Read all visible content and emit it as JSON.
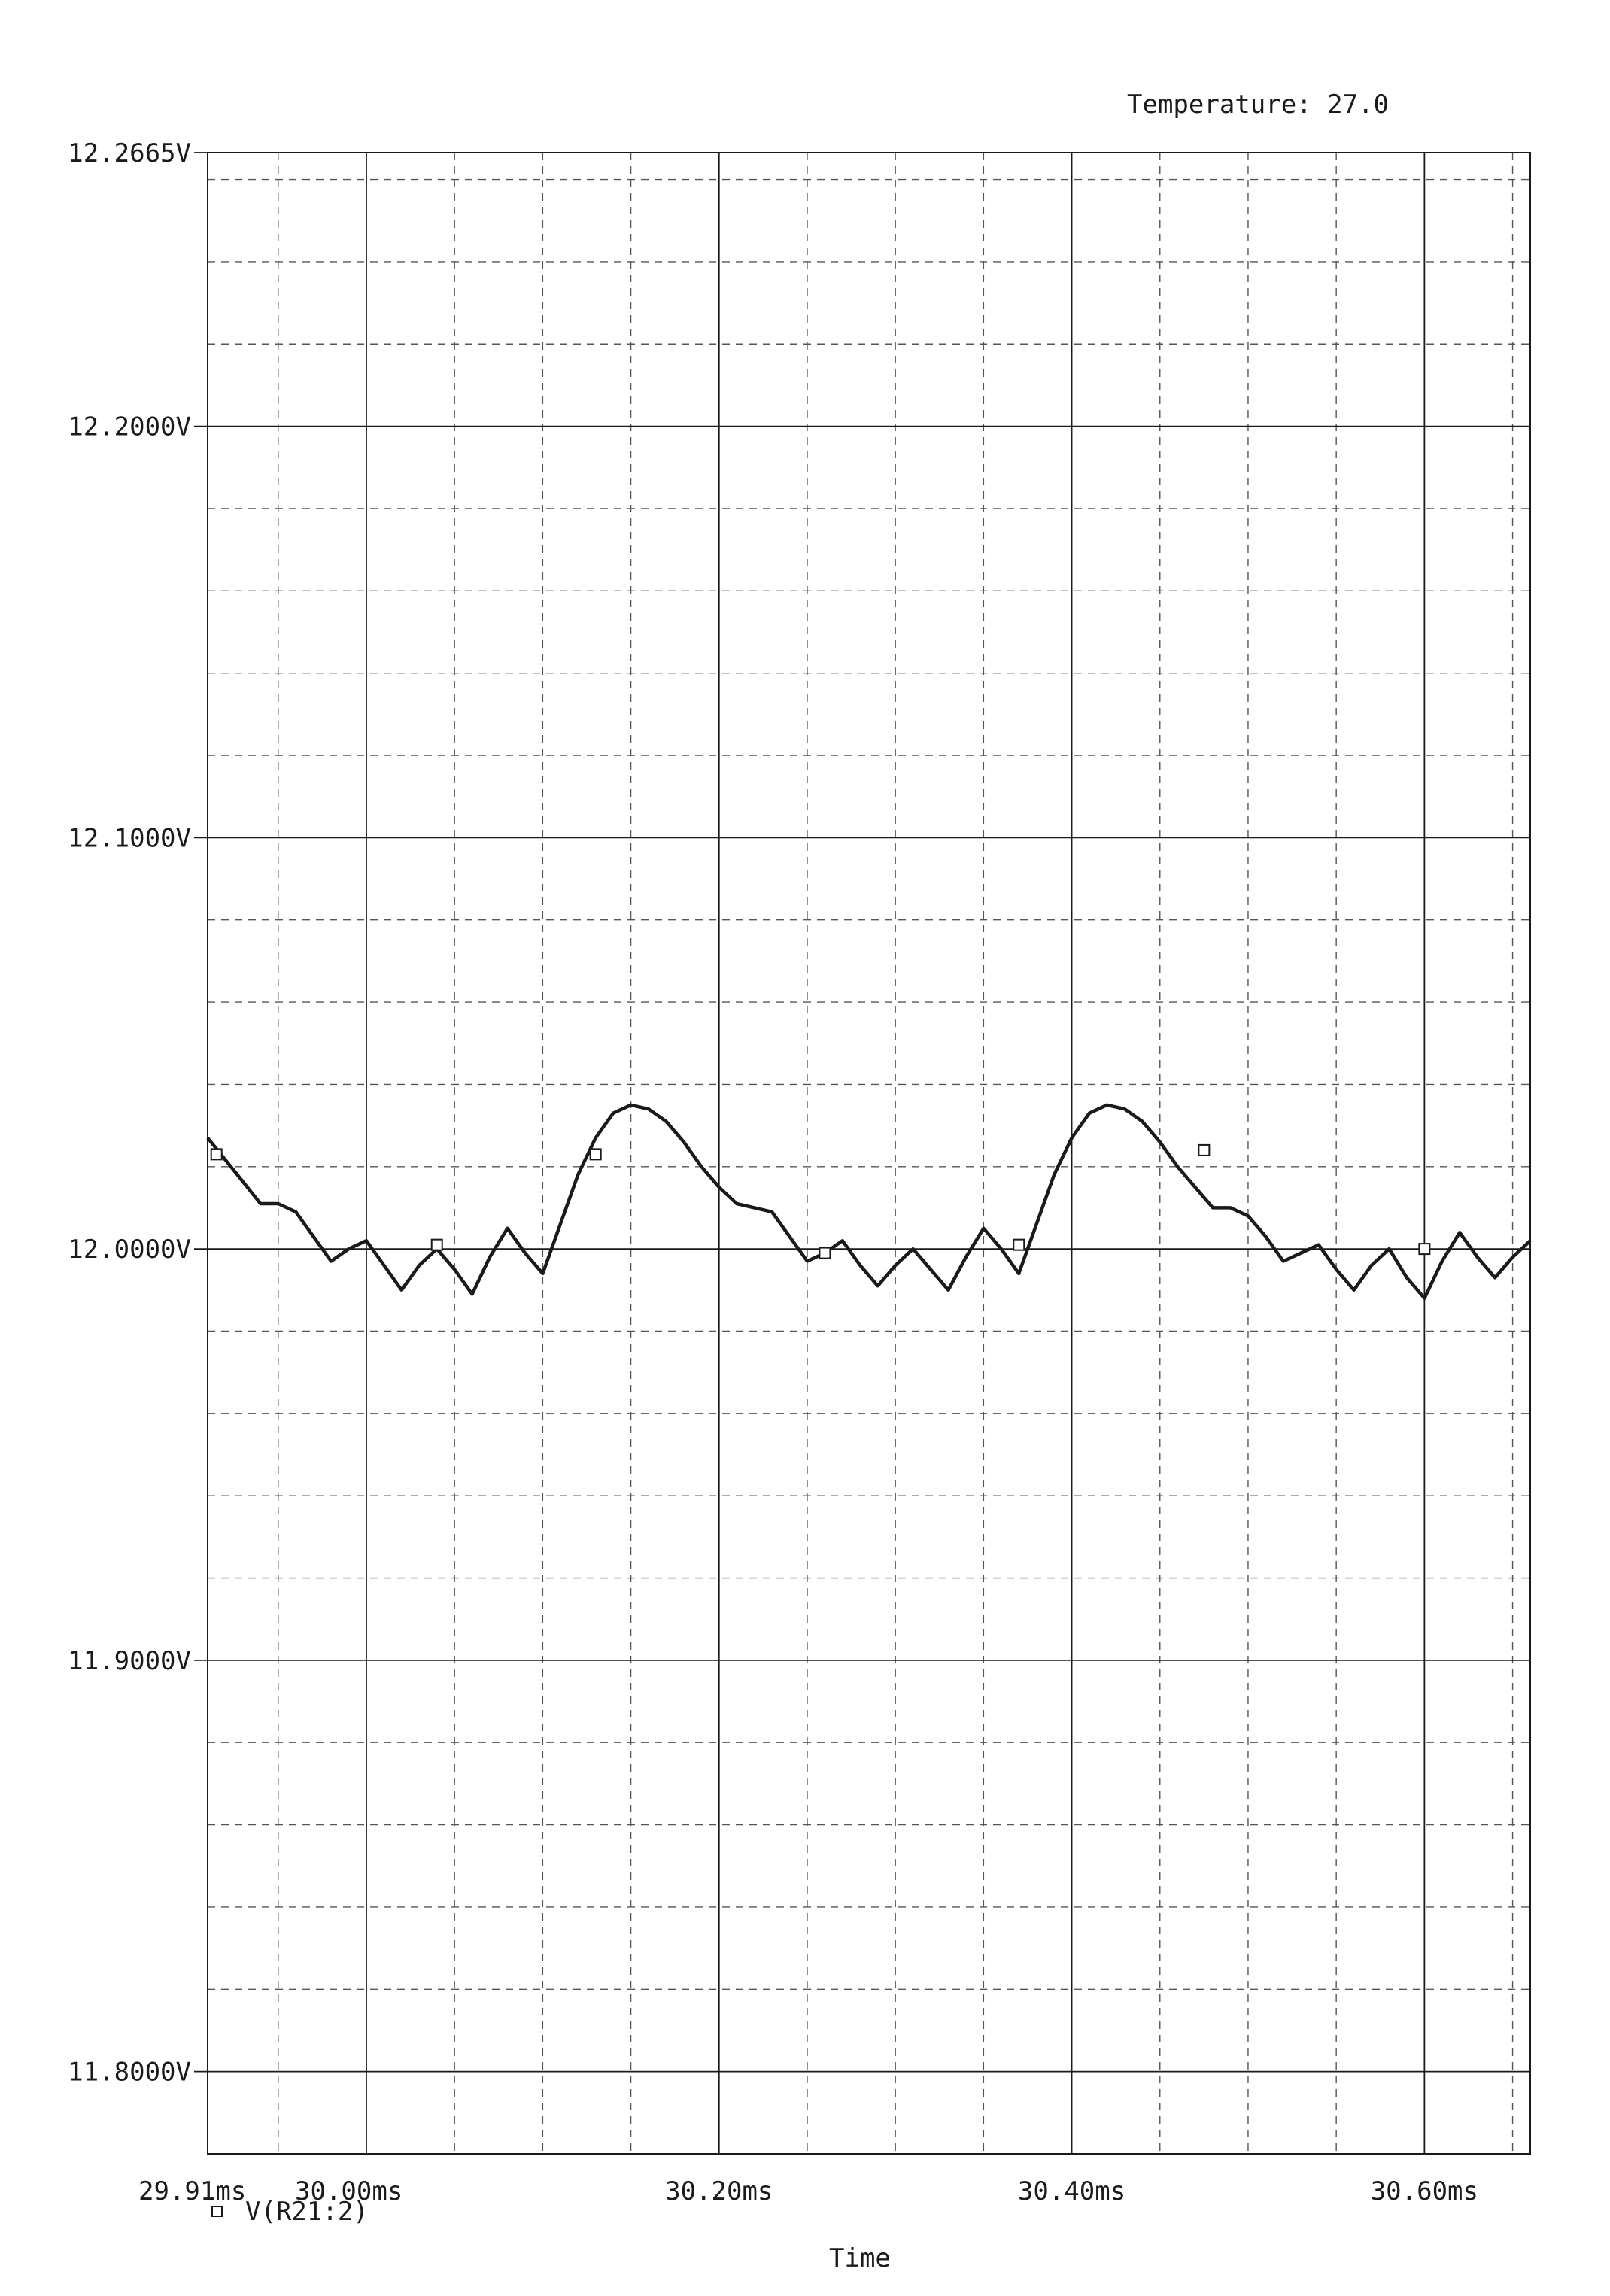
{
  "header": {
    "temperature_label": "Temperature: 27.0"
  },
  "chart_data": {
    "type": "line",
    "title": "",
    "xlabel": "Time",
    "ylabel": "",
    "x_unit": "ms",
    "y_unit": "V",
    "xlim": [
      29.91,
      30.66
    ],
    "ylim": [
      11.78,
      12.2665
    ],
    "major_x_ticks": [
      30.0,
      30.2,
      30.4,
      30.6
    ],
    "minor_x_ticks": [
      29.95,
      30.05,
      30.1,
      30.15,
      30.25,
      30.3,
      30.35,
      30.45,
      30.5,
      30.55,
      30.65
    ],
    "major_y_ticks": [
      11.8,
      11.9,
      12.0,
      12.1,
      12.2
    ],
    "minor_y_ticks": [
      11.82,
      11.84,
      11.86,
      11.88,
      11.92,
      11.94,
      11.96,
      11.98,
      12.02,
      12.04,
      12.06,
      12.08,
      12.12,
      12.14,
      12.16,
      12.18,
      12.22,
      12.24,
      12.26
    ],
    "x_tick_labels": [
      "29.91ms",
      "30.00ms",
      "30.20ms",
      "30.40ms",
      "30.60ms"
    ],
    "x_tick_label_values": [
      29.91,
      30.0,
      30.2,
      30.4,
      30.6
    ],
    "y_tick_labels": [
      "11.8000V",
      "11.9000V",
      "12.0000V",
      "12.1000V",
      "12.2000V",
      "12.2665V"
    ],
    "y_tick_label_values": [
      11.8,
      11.9,
      12.0,
      12.1,
      12.2,
      12.2665
    ],
    "grid": true,
    "legend_position": "bottom-left",
    "series": [
      {
        "name": "V(R21:2)",
        "marker": "square",
        "color": "#1a1a1a",
        "x": [
          29.91,
          29.925,
          29.94,
          29.95,
          29.96,
          29.97,
          29.98,
          29.99,
          30.0,
          30.01,
          30.02,
          30.03,
          30.04,
          30.05,
          30.06,
          30.07,
          30.08,
          30.09,
          30.1,
          30.11,
          30.12,
          30.13,
          30.14,
          30.15,
          30.16,
          30.17,
          30.18,
          30.19,
          30.2,
          30.21,
          30.22,
          30.23,
          30.24,
          30.25,
          30.26,
          30.27,
          30.28,
          30.29,
          30.3,
          30.31,
          30.32,
          30.33,
          30.34,
          30.35,
          30.36,
          30.37,
          30.38,
          30.39,
          30.4,
          30.41,
          30.42,
          30.43,
          30.44,
          30.45,
          30.46,
          30.47,
          30.48,
          30.49,
          30.5,
          30.51,
          30.52,
          30.53,
          30.54,
          30.55,
          30.56,
          30.57,
          30.58,
          30.59,
          30.6,
          30.61,
          30.62,
          30.63,
          30.64,
          30.65,
          30.66
        ],
        "y": [
          12.027,
          12.019,
          12.011,
          12.011,
          12.009,
          12.003,
          11.997,
          12.0,
          12.002,
          11.996,
          11.99,
          11.996,
          12.0,
          11.995,
          11.989,
          11.998,
          12.005,
          11.999,
          11.994,
          12.006,
          12.018,
          12.027,
          12.033,
          12.035,
          12.034,
          12.031,
          12.026,
          12.02,
          12.015,
          12.011,
          12.01,
          12.009,
          12.003,
          11.997,
          11.999,
          12.002,
          11.996,
          11.991,
          11.996,
          12.0,
          11.995,
          11.99,
          11.998,
          12.005,
          12.0,
          11.994,
          12.006,
          12.018,
          12.027,
          12.033,
          12.035,
          12.034,
          12.031,
          12.026,
          12.02,
          12.015,
          12.01,
          12.01,
          12.008,
          12.003,
          11.997,
          11.999,
          12.001,
          11.995,
          11.99,
          11.996,
          12.0,
          11.993,
          11.988,
          11.997,
          12.004,
          11.998,
          11.993,
          11.998,
          12.002
        ],
        "marker_x": [
          29.915,
          30.04,
          30.13,
          30.26,
          30.37,
          30.475,
          30.6
        ],
        "marker_y": [
          12.023,
          12.001,
          12.023,
          11.999,
          12.001,
          12.024,
          12.0
        ]
      }
    ]
  }
}
